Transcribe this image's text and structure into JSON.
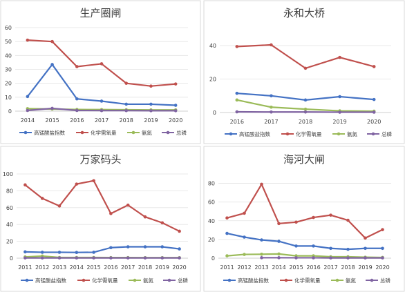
{
  "legend_labels": [
    "高锰酸盐指数",
    "化学需氧量",
    "氨氮",
    "总磷"
  ],
  "series_colors": [
    "#4472C4",
    "#C0504D",
    "#9BBB59",
    "#8064A2"
  ],
  "chart_data": [
    {
      "type": "line",
      "title": "生产圈闸",
      "x": [
        "2014",
        "2015",
        "2016",
        "2017",
        "2018",
        "2019",
        "2020"
      ],
      "ylim": [
        0,
        60
      ],
      "yticks": [
        0,
        10,
        20,
        30,
        40,
        50,
        60
      ],
      "grid": true,
      "legend": "bottom",
      "series": [
        {
          "name": "高锰酸盐指数",
          "values": [
            10.5,
            33.5,
            8.8,
            7.2,
            5.0,
            5.0,
            4.2
          ]
        },
        {
          "name": "化学需氧量",
          "values": [
            51,
            50,
            32,
            34,
            20,
            18,
            19.5
          ]
        },
        {
          "name": "氨氮",
          "values": [
            1.8,
            1.5,
            1.2,
            1.1,
            1.0,
            0.9,
            0.9
          ]
        },
        {
          "name": "总磷",
          "values": [
            0.5,
            2.0,
            0.5,
            0.4,
            0.4,
            0.3,
            0.3
          ]
        }
      ]
    },
    {
      "type": "line",
      "title": "永和大桥",
      "x": [
        "2016",
        "2017",
        "2018",
        "2019",
        "2020"
      ],
      "ylim": [
        0,
        50
      ],
      "yticks": [
        0,
        20,
        40
      ],
      "grid": true,
      "legend": "bottom",
      "series": [
        {
          "name": "高锰酸盐指数",
          "values": [
            11.5,
            10.0,
            7.5,
            9.5,
            7.8
          ]
        },
        {
          "name": "化学需氧量",
          "values": [
            39.5,
            40.5,
            26.5,
            33,
            27.5
          ]
        },
        {
          "name": "氨氮",
          "values": [
            7.5,
            3.2,
            2.0,
            1.0,
            0.8
          ]
        },
        {
          "name": "总磷",
          "values": [
            0.4,
            0.3,
            0.3,
            0.2,
            0.2
          ]
        }
      ]
    },
    {
      "type": "line",
      "title": "万家码头",
      "x": [
        "2011",
        "2012",
        "2013",
        "2014",
        "2015",
        "2016",
        "2017",
        "2018",
        "2019",
        "2020"
      ],
      "ylim": [
        0,
        100
      ],
      "yticks": [
        0,
        20,
        40,
        60,
        80,
        100
      ],
      "grid": true,
      "legend": "bottom",
      "series": [
        {
          "name": "高锰酸盐指数",
          "values": [
            7.5,
            7.0,
            7.0,
            6.8,
            7.0,
            12.5,
            13.5,
            13.5,
            13.5,
            11.0
          ]
        },
        {
          "name": "化学需氧量",
          "values": [
            87,
            71,
            62,
            88,
            92,
            53,
            63,
            49,
            42,
            32
          ]
        },
        {
          "name": "氨氮",
          "values": [
            1.5,
            2.5,
            0.8,
            0.8,
            0.8,
            0.7,
            0.7,
            0.6,
            0.6,
            0.6
          ]
        },
        {
          "name": "总磷",
          "values": [
            0.3,
            0.3,
            0.3,
            0.3,
            0.3,
            0.3,
            0.3,
            0.3,
            0.3,
            0.3
          ]
        }
      ]
    },
    {
      "type": "line",
      "title": "海河大闸",
      "x": [
        "2011",
        "2012",
        "2013",
        "2014",
        "2015",
        "2016",
        "2017",
        "2018",
        "2019",
        "2020"
      ],
      "ylim": [
        0,
        90
      ],
      "yticks": [
        0,
        20,
        40,
        60,
        80
      ],
      "grid": true,
      "legend": "bottom",
      "series": [
        {
          "name": "高锰酸盐指数",
          "values": [
            26.5,
            22.5,
            19.5,
            18.0,
            13.0,
            13.0,
            10.5,
            9.5,
            10.5,
            10.5
          ]
        },
        {
          "name": "化学需氧量",
          "values": [
            43,
            48,
            79,
            37,
            38.5,
            43.5,
            46,
            40.5,
            21.5,
            30.5
          ]
        },
        {
          "name": "氨氮",
          "values": [
            2.5,
            4.0,
            4.2,
            4.5,
            2.5,
            2.5,
            1.5,
            1.5,
            1.0,
            0.8
          ]
        },
        {
          "name": "总磷",
          "values": [
            null,
            null,
            0.5,
            0.5,
            0.4,
            0.4,
            0.3,
            0.3,
            0.3,
            0.3
          ]
        }
      ]
    }
  ]
}
